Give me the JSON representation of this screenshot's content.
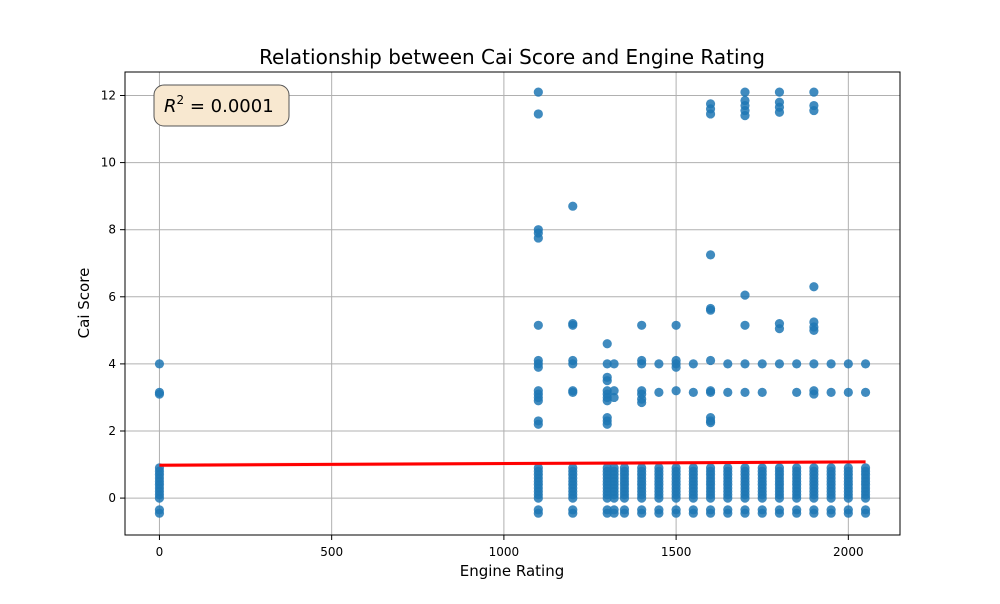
{
  "chart_data": {
    "type": "scatter",
    "title": "Relationship between Cai Score and Engine Rating",
    "xlabel": "Engine Rating",
    "ylabel": "Cai Score",
    "xlim": [
      -100,
      2150
    ],
    "ylim": [
      -1.1,
      12.7
    ],
    "xticks": [
      0,
      500,
      1000,
      1500,
      2000
    ],
    "yticks": [
      0,
      2,
      4,
      6,
      8,
      10,
      12
    ],
    "grid": true,
    "annotation": {
      "text_prefix": "R",
      "superscript": "2",
      "text_suffix": " = 0.0001",
      "location": "top-left"
    },
    "colors": {
      "points": "#1f77b4",
      "regression": "#ff0000",
      "ci_band": "#ffcccc",
      "annotation_bg": "#f8e8d0",
      "grid": "#b0b0b0"
    },
    "regression": {
      "x": [
        0,
        2050
      ],
      "y": [
        0.98,
        1.08
      ],
      "ci_low": [
        0.92,
        1.03
      ],
      "ci_high": [
        1.04,
        1.13
      ]
    },
    "points": {
      "low_band_y": [
        -0.45,
        -0.35,
        0.0,
        0.1,
        0.2,
        0.3,
        0.4,
        0.5,
        0.6,
        0.7,
        0.8,
        0.9
      ],
      "low_band_x": [
        0,
        1100,
        1200,
        1300,
        1320,
        1350,
        1400,
        1450,
        1500,
        1550,
        1600,
        1650,
        1700,
        1750,
        1800,
        1850,
        1900,
        1950,
        2000,
        2050
      ],
      "other": [
        [
          0,
          4.0
        ],
        [
          0,
          3.1
        ],
        [
          0,
          3.15
        ],
        [
          1100,
          12.1
        ],
        [
          1100,
          11.45
        ],
        [
          1100,
          8.0
        ],
        [
          1100,
          7.9
        ],
        [
          1100,
          7.75
        ],
        [
          1100,
          5.15
        ],
        [
          1100,
          4.1
        ],
        [
          1100,
          4.0
        ],
        [
          1100,
          3.9
        ],
        [
          1100,
          3.2
        ],
        [
          1100,
          3.1
        ],
        [
          1100,
          3.0
        ],
        [
          1100,
          2.9
        ],
        [
          1100,
          2.3
        ],
        [
          1100,
          2.2
        ],
        [
          1200,
          8.7
        ],
        [
          1200,
          5.2
        ],
        [
          1200,
          5.15
        ],
        [
          1200,
          4.1
        ],
        [
          1200,
          4.0
        ],
        [
          1200,
          3.2
        ],
        [
          1200,
          3.15
        ],
        [
          1300,
          4.6
        ],
        [
          1300,
          4.0
        ],
        [
          1300,
          3.6
        ],
        [
          1300,
          3.5
        ],
        [
          1300,
          3.2
        ],
        [
          1300,
          3.1
        ],
        [
          1300,
          3.0
        ],
        [
          1300,
          2.9
        ],
        [
          1300,
          2.4
        ],
        [
          1300,
          2.3
        ],
        [
          1300,
          2.2
        ],
        [
          1320,
          4.0
        ],
        [
          1320,
          3.2
        ],
        [
          1320,
          3.0
        ],
        [
          1400,
          5.15
        ],
        [
          1400,
          4.1
        ],
        [
          1400,
          4.0
        ],
        [
          1400,
          3.2
        ],
        [
          1400,
          3.1
        ],
        [
          1400,
          2.95
        ],
        [
          1400,
          2.85
        ],
        [
          1450,
          4.0
        ],
        [
          1450,
          3.15
        ],
        [
          1500,
          5.15
        ],
        [
          1500,
          4.1
        ],
        [
          1500,
          4.0
        ],
        [
          1500,
          3.9
        ],
        [
          1500,
          3.2
        ],
        [
          1550,
          4.0
        ],
        [
          1550,
          3.15
        ],
        [
          1600,
          11.75
        ],
        [
          1600,
          11.6
        ],
        [
          1600,
          11.45
        ],
        [
          1600,
          7.25
        ],
        [
          1600,
          5.65
        ],
        [
          1600,
          5.6
        ],
        [
          1600,
          4.1
        ],
        [
          1600,
          3.2
        ],
        [
          1600,
          3.15
        ],
        [
          1600,
          2.4
        ],
        [
          1600,
          2.3
        ],
        [
          1600,
          2.25
        ],
        [
          1650,
          4.0
        ],
        [
          1650,
          3.15
        ],
        [
          1700,
          12.1
        ],
        [
          1700,
          11.85
        ],
        [
          1700,
          11.7
        ],
        [
          1700,
          11.55
        ],
        [
          1700,
          11.4
        ],
        [
          1700,
          6.05
        ],
        [
          1700,
          5.15
        ],
        [
          1700,
          4.0
        ],
        [
          1700,
          3.15
        ],
        [
          1750,
          4.0
        ],
        [
          1750,
          3.15
        ],
        [
          1800,
          12.1
        ],
        [
          1800,
          11.8
        ],
        [
          1800,
          11.65
        ],
        [
          1800,
          11.5
        ],
        [
          1800,
          5.2
        ],
        [
          1800,
          5.05
        ],
        [
          1800,
          4.0
        ],
        [
          1850,
          4.0
        ],
        [
          1850,
          3.15
        ],
        [
          1900,
          12.1
        ],
        [
          1900,
          11.7
        ],
        [
          1900,
          11.55
        ],
        [
          1900,
          6.3
        ],
        [
          1900,
          5.25
        ],
        [
          1900,
          5.1
        ],
        [
          1900,
          5.0
        ],
        [
          1900,
          4.0
        ],
        [
          1900,
          3.2
        ],
        [
          1900,
          3.1
        ],
        [
          1950,
          4.0
        ],
        [
          1950,
          3.15
        ],
        [
          2000,
          4.0
        ],
        [
          2000,
          3.15
        ],
        [
          2050,
          4.0
        ],
        [
          2050,
          3.15
        ]
      ]
    }
  }
}
